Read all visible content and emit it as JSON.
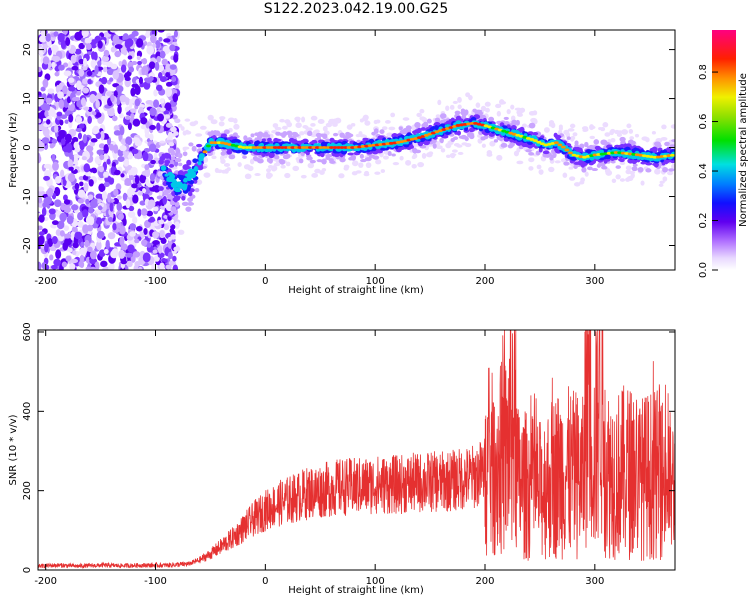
{
  "figure": {
    "title": "S122.2023.042.19.00.G25"
  },
  "colors": {
    "signal_line": "#e53030",
    "axes": "#000000"
  },
  "chart_data": [
    {
      "type": "heatmap",
      "xlabel": "Height of straight line (km)",
      "ylabel": "Frequency (Hz)",
      "xlim": [
        -207,
        373
      ],
      "ylim": [
        -25,
        24
      ],
      "xticks": [
        -200,
        -100,
        0,
        100,
        200,
        300
      ],
      "yticks": [
        -20,
        -10,
        0,
        10,
        20
      ],
      "colorbar": {
        "label": "Normalized spectral amplitude",
        "range": [
          0,
          0.97
        ],
        "ticks": [
          "0.0",
          "0.2",
          "0.4",
          "0.6",
          "0.8"
        ],
        "colormap": "rainbow (white-lavender-violet-blue-cyan-green-yellow-orange-red-magenta)"
      },
      "ridge": {
        "x": [
          -90,
          -80,
          -72,
          -65,
          -58,
          -50,
          -40,
          -20,
          0,
          20,
          50,
          80,
          100,
          120,
          140,
          160,
          175,
          190,
          200,
          215,
          230,
          245,
          255,
          265,
          272,
          280,
          290,
          300,
          320,
          340,
          355,
          373
        ],
        "y": [
          -5,
          -8,
          -7,
          -5,
          -2,
          1,
          1,
          0,
          0,
          0,
          0,
          0,
          0.5,
          1,
          2,
          3.5,
          4.5,
          5,
          4.5,
          3.5,
          2.5,
          1.5,
          0.5,
          1,
          0,
          -1.5,
          -2,
          -1.5,
          -1,
          -1.5,
          -2,
          -1.5
        ]
      },
      "noise_region_x": [
        -207,
        -90
      ]
    },
    {
      "type": "line",
      "xlabel": "Height of straight line (km)",
      "ylabel": "SNR (10 * v/v)",
      "xlim": [
        -207,
        373
      ],
      "ylim": [
        0,
        605
      ],
      "xticks": [
        -200,
        -100,
        0,
        100,
        200,
        300
      ],
      "yticks": [
        0,
        200,
        400,
        600
      ],
      "series": [
        {
          "x": [
            -207,
            -190,
            -170,
            -150,
            -130,
            -110,
            -90,
            -70,
            -60,
            -50,
            -40,
            -30,
            -20,
            -10,
            0,
            10,
            20,
            30,
            40,
            50,
            60,
            70,
            80,
            90,
            100,
            110,
            120,
            130,
            140,
            150,
            160,
            170,
            180,
            190,
            200,
            210,
            220,
            225,
            230,
            240,
            250,
            260,
            270,
            280,
            290,
            293,
            300,
            305,
            310,
            320,
            330,
            340,
            350,
            360,
            373
          ],
          "y": [
            10,
            12,
            10,
            12,
            11,
            12,
            12,
            15,
            25,
            40,
            60,
            80,
            105,
            130,
            150,
            165,
            175,
            185,
            195,
            200,
            205,
            210,
            210,
            212,
            215,
            215,
            215,
            218,
            220,
            222,
            222,
            225,
            230,
            235,
            250,
            270,
            290,
            420,
            220,
            210,
            200,
            230,
            250,
            240,
            230,
            600,
            260,
            580,
            250,
            240,
            250,
            230,
            240,
            240,
            200
          ]
        }
      ]
    }
  ]
}
